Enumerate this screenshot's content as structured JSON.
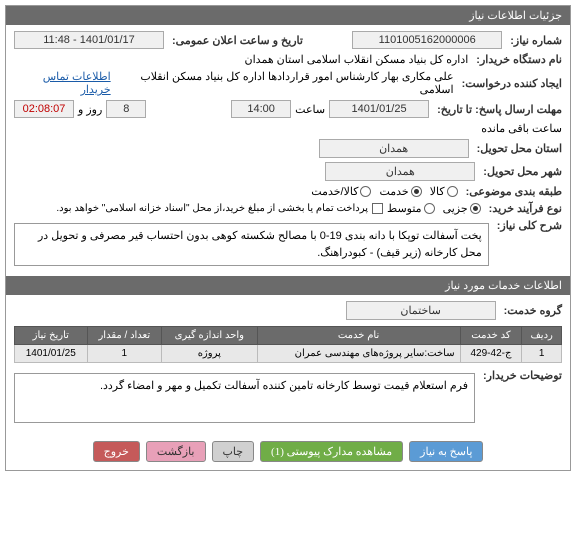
{
  "header": {
    "title": "جزئیات اطلاعات نیاز"
  },
  "fields": {
    "need_number_label": "شماره نیاز:",
    "need_number": "1101005162000006",
    "announce_date_label": "تاریخ و ساعت اعلان عمومی:",
    "announce_date": "1401/01/17 - 11:48",
    "buyer_label": "نام دستگاه خریدار:",
    "buyer": "اداره کل بنیاد مسکن انقلاب اسلامی استان همدان",
    "creator_label": "ایجاد کننده درخواست:",
    "creator": "علی مکاری بهار کارشناس امور قراردادها اداره کل بنیاد مسکن انقلاب اسلامی",
    "contact_link": "اطلاعات تماس خریدار",
    "deadline_label": "مهلت ارسال پاسخ: تا تاریخ:",
    "deadline_date": "1401/01/25",
    "time_label": "ساعت",
    "deadline_time": "14:00",
    "days_remaining": "8",
    "days_and": "روز و",
    "time_remaining": "02:08:07",
    "time_remaining_label": "ساعت باقی مانده",
    "delivery_province_label": "استان محل تحویل:",
    "delivery_province": "همدان",
    "delivery_city_label": "شهر محل تحویل:",
    "delivery_city": "همدان",
    "category_label": "طبقه بندی موضوعی:",
    "cat_goods": "کالا",
    "cat_service": "خدمت",
    "cat_goods_service": "کالا/خدمت",
    "process_type_label": "نوع فرآیند خرید:",
    "process_partial": "جزیی",
    "process_medium": "متوسط",
    "process_note": "پرداخت تمام یا بخشی از مبلغ خرید،از محل \"اسناد خزانه اسلامی\" خواهد بود.",
    "general_desc_label": "شرح کلی نیاز:",
    "general_desc": "پخت آسفالت توپکا با دانه بندی 19-0 با مصالح شکسته کوهی بدون احتساب قیر مصرفی و تحویل در محل کارخانه (زیر قیف) - کبودراهنگ.",
    "services_header": "اطلاعات خدمات مورد نیاز",
    "group_service_label": "گروه خدمت:",
    "group_service": "ساختمان",
    "buyer_notes_label": "توضیحات خریدار:",
    "buyer_notes": "فرم استعلام قیمت توسط کارخانه تامین کننده آسفالت تکمیل و مهر و امضاء گردد."
  },
  "table": {
    "headers": {
      "row": "ردیف",
      "code": "کد خدمت",
      "name": "نام خدمت",
      "unit": "واحد اندازه گیری",
      "qty": "تعداد / مقدار",
      "date": "تاریخ نیاز"
    },
    "rows": [
      {
        "row": "1",
        "code": "ج-42-429",
        "name": "ساخت:سایر پروژه‌های مهندسی عمران",
        "unit": "پروژه",
        "qty": "1",
        "date": "1401/01/25"
      }
    ]
  },
  "buttons": {
    "respond": "پاسخ به نیاز",
    "attachments": "مشاهده مدارک پیوستی (1)",
    "print": "چاپ",
    "back": "بازگشت",
    "exit": "خروج"
  },
  "colors": {
    "header_bg": "#6b6b6b",
    "field_bg": "#f0f0f0",
    "link": "#1a5ba8",
    "table_row_bg": "#e8e8e8"
  }
}
